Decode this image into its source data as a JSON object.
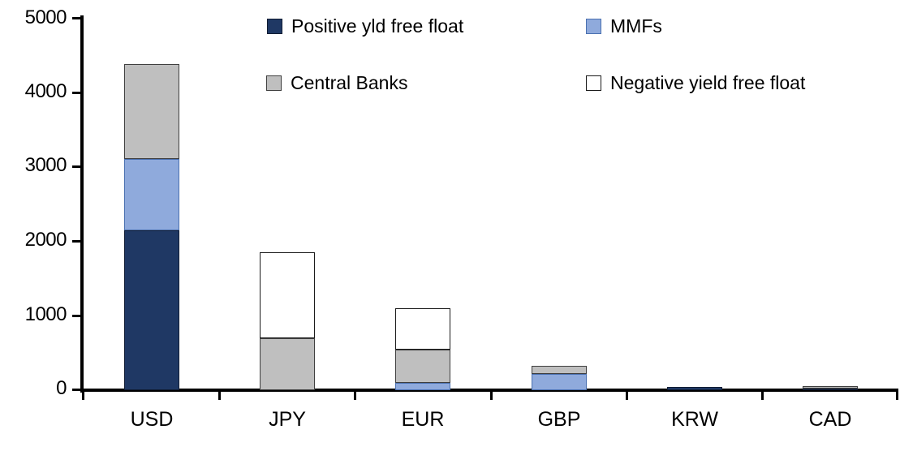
{
  "chart_data": {
    "type": "bar",
    "stacked": true,
    "title": "",
    "xlabel": "",
    "ylabel": "",
    "categories": [
      "USD",
      "JPY",
      "EUR",
      "GBP",
      "KRW",
      "CAD"
    ],
    "series": [
      {
        "name": "Positive yld free float",
        "color": "#1F3864",
        "border_color": "#101C33",
        "values": [
          2150,
          0,
          0,
          0,
          40,
          25
        ]
      },
      {
        "name": "MMFs",
        "color": "#8FAADC",
        "border_color": "#4A70B0",
        "values": [
          950,
          0,
          100,
          220,
          0,
          0
        ]
      },
      {
        "name": "Central Banks",
        "color": "#BFBFBF",
        "border_color": "#3F3F3F",
        "values": [
          1280,
          700,
          440,
          110,
          0,
          35
        ]
      },
      {
        "name": "Negative yield free float",
        "color": "#FFFFFF",
        "border_color": "#1A1A1A",
        "values": [
          0,
          1150,
          560,
          0,
          0,
          0
        ]
      }
    ],
    "totals": [
      4380,
      1850,
      1100,
      330,
      40,
      60
    ],
    "ylim": [
      0,
      5000
    ],
    "ytick_interval": 1000,
    "yticks": [
      "5000",
      "4000",
      "3000",
      "2000",
      "1000",
      "0"
    ],
    "grid": false,
    "legend_position": "top, 2 columns x 2 rows",
    "axis_color": "#000000",
    "background_color": "#FFFFFF"
  }
}
